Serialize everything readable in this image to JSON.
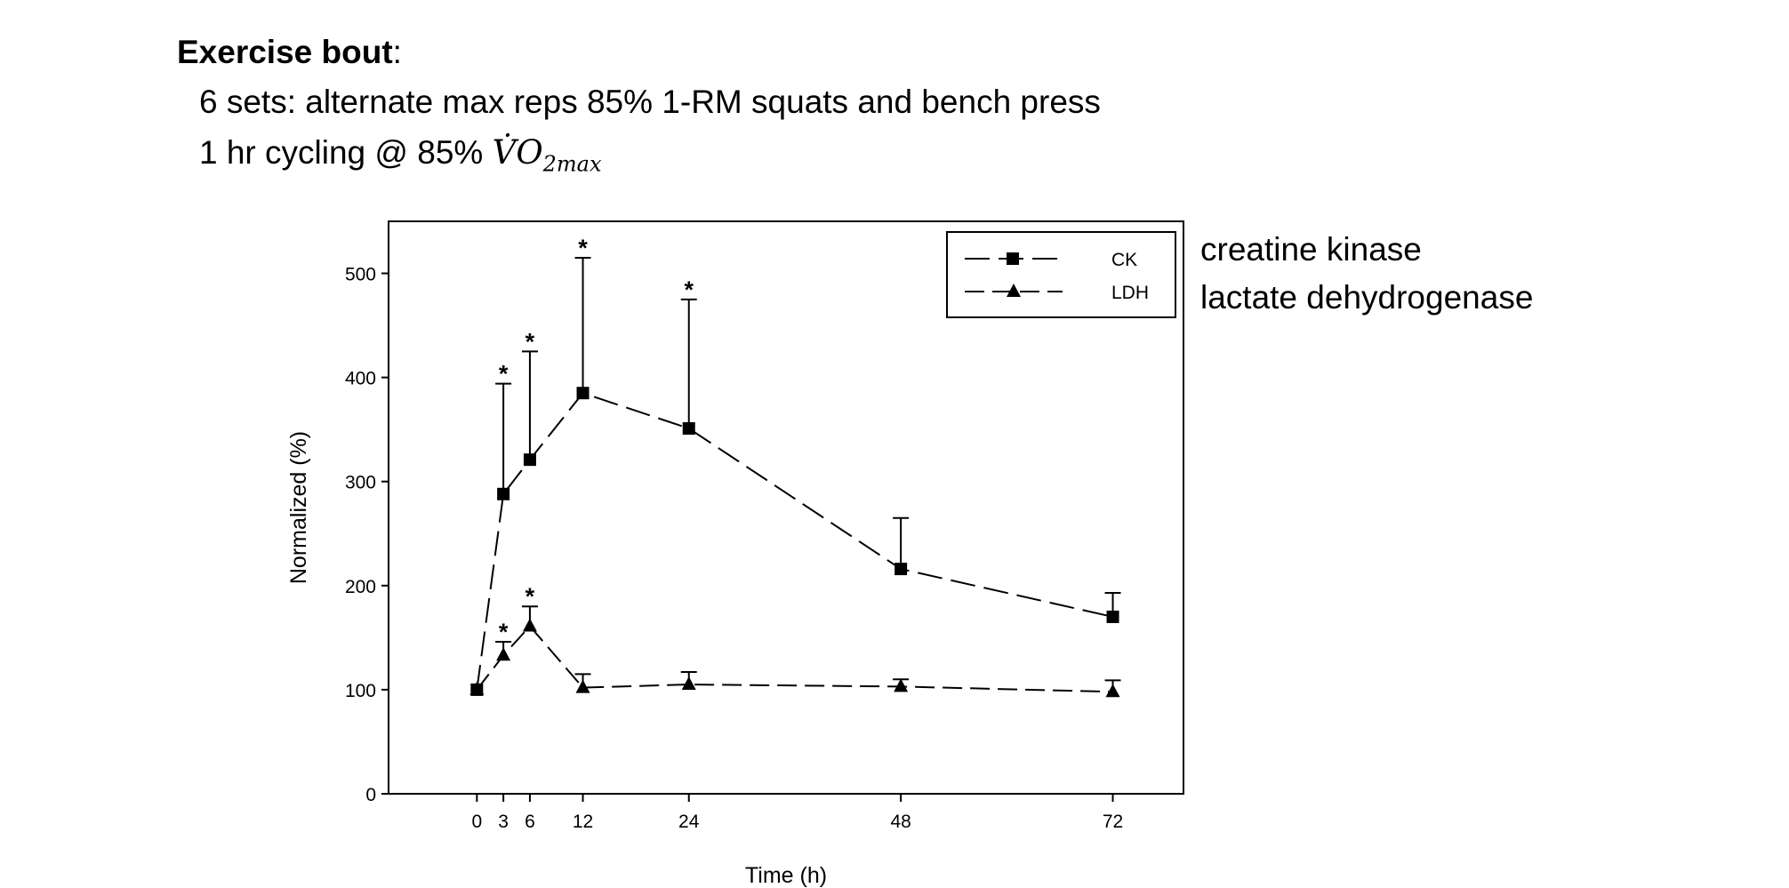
{
  "header": {
    "title_bold": "Exercise bout",
    "title_colon": ":",
    "line1": "6 sets: alternate max reps 85% 1-RM squats and bench press",
    "line2_prefix": "1 hr cycling @ 85% ",
    "line2_math": "V̇O",
    "line2_sub": "2max"
  },
  "annotations": {
    "ck_full": "creatine kinase",
    "ldh_full": "lactate dehydrogenase"
  },
  "chart_data": {
    "type": "line",
    "title": "",
    "xlabel": "Time (h)",
    "ylabel": "Normalized (%)",
    "xlim": [
      -10,
      80
    ],
    "ylim": [
      0,
      550
    ],
    "x_ticks": [
      0,
      3,
      6,
      12,
      24,
      48,
      72
    ],
    "y_ticks": [
      0,
      100,
      200,
      300,
      400,
      500
    ],
    "legend_position": "top-right",
    "grid": false,
    "series": [
      {
        "name": "CK",
        "marker": "square",
        "x": [
          0,
          3,
          6,
          12,
          24,
          48,
          72
        ],
        "y": [
          100,
          288,
          321,
          385,
          351,
          216,
          170
        ],
        "error_upper": [
          100,
          394,
          425,
          515,
          475,
          265,
          193
        ],
        "significant": [
          false,
          true,
          true,
          true,
          true,
          false,
          false
        ]
      },
      {
        "name": "LDH",
        "marker": "triangle",
        "x": [
          0,
          3,
          6,
          12,
          24,
          48,
          72
        ],
        "y": [
          100,
          133,
          161,
          102,
          105,
          103,
          98
        ],
        "error_upper": [
          100,
          146,
          180,
          115,
          117,
          110,
          109
        ],
        "significant": [
          false,
          true,
          true,
          false,
          false,
          false,
          false
        ]
      }
    ],
    "significance_marker": "*"
  }
}
